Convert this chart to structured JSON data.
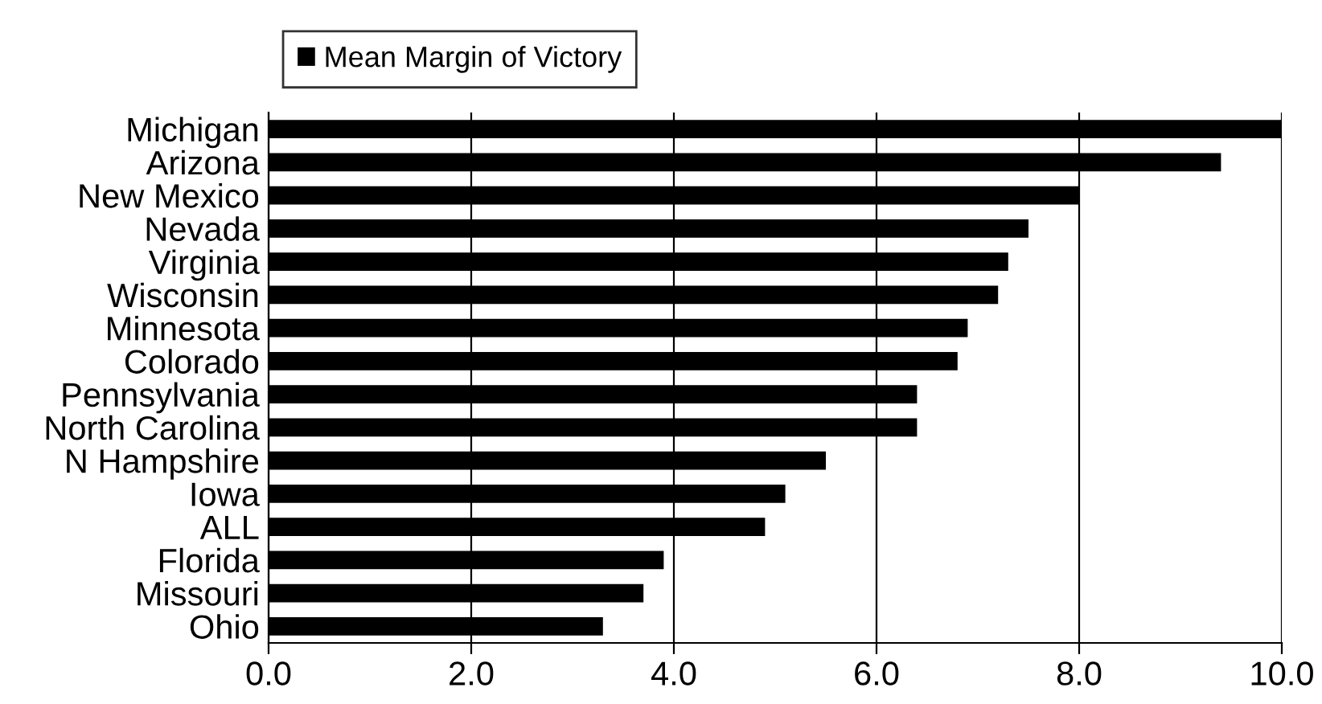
{
  "chart_data": {
    "type": "bar",
    "orientation": "horizontal",
    "categories": [
      "Michigan",
      "Arizona",
      "New Mexico",
      "Nevada",
      "Virginia",
      "Wisconsin",
      "Minnesota",
      "Colorado",
      "Pennsylvania",
      "North Carolina",
      "N Hampshire",
      "Iowa",
      "ALL",
      "Florida",
      "Missouri",
      "Ohio"
    ],
    "series": [
      {
        "name": "Mean Margin of Victory",
        "color": "#000000",
        "values": [
          10.0,
          9.4,
          8.0,
          7.5,
          7.3,
          7.2,
          6.9,
          6.8,
          6.4,
          6.4,
          5.5,
          5.1,
          4.9,
          3.9,
          3.7,
          3.3
        ]
      }
    ],
    "xlim": [
      0,
      10
    ],
    "xticks": [
      {
        "value": 0,
        "label": "0.0"
      },
      {
        "value": 2,
        "label": "2.0"
      },
      {
        "value": 4,
        "label": "4.0"
      },
      {
        "value": 6,
        "label": "6.0"
      },
      {
        "value": 8,
        "label": "8.0"
      },
      {
        "value": 10,
        "label": "10.0"
      }
    ],
    "grid": "x",
    "legend": "top left"
  }
}
